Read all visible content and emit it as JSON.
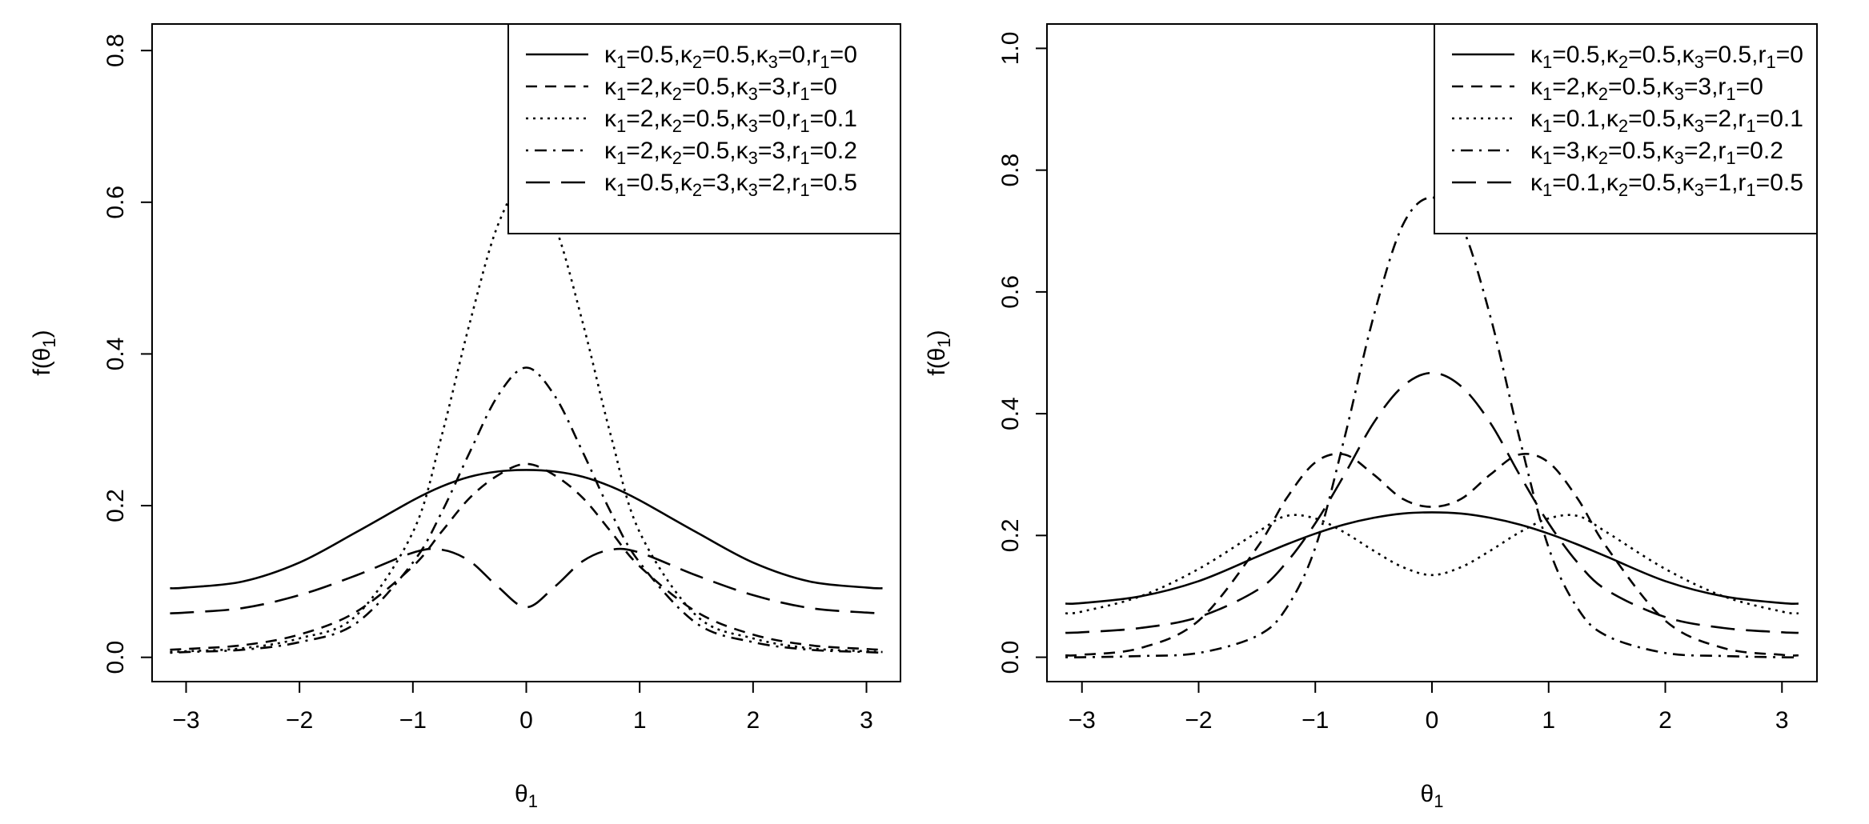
{
  "chart_data": [
    {
      "type": "line",
      "xlabel": "θ1",
      "ylabel": "f(θ1)",
      "xlim": [
        -3.3,
        3.3
      ],
      "ylim": [
        -0.032,
        0.835
      ],
      "x_ticks": [
        -3,
        -2,
        -1,
        0,
        1,
        2,
        3
      ],
      "x_tick_labels": [
        "−3",
        "−2",
        "−1",
        "0",
        "1",
        "2",
        "3"
      ],
      "y_ticks": [
        0.0,
        0.2,
        0.4,
        0.6,
        0.8
      ],
      "y_tick_labels": [
        "0.0",
        "0.2",
        "0.4",
        "0.6",
        "0.8"
      ],
      "grid": false,
      "legend_position": "top-right",
      "x": [
        -3.1416,
        -3.0,
        -2.5,
        -2.0,
        -1.5,
        -1.0,
        -0.75,
        -0.5,
        -0.25,
        0.0,
        0.25,
        0.5,
        0.75,
        1.0,
        1.5,
        2.0,
        2.5,
        3.0,
        3.1416
      ],
      "series": [
        {
          "name": "κ1=0.5,κ2=0.5,κ3=0,r1=0",
          "dash": "solid",
          "values": [
            0.091,
            0.092,
            0.1,
            0.125,
            0.165,
            0.207,
            0.225,
            0.238,
            0.245,
            0.247,
            0.245,
            0.238,
            0.225,
            0.207,
            0.165,
            0.125,
            0.1,
            0.092,
            0.091
          ]
        },
        {
          "name": "κ1=2,κ2=0.5,κ3=3,r1=0",
          "dash": "short-dash",
          "values": [
            0.01,
            0.011,
            0.016,
            0.03,
            0.06,
            0.12,
            0.165,
            0.21,
            0.24,
            0.255,
            0.24,
            0.21,
            0.165,
            0.12,
            0.06,
            0.03,
            0.016,
            0.011,
            0.01
          ]
        },
        {
          "name": "κ1=2,κ2=0.5,κ3=0,r1=0.1",
          "dash": "dotted",
          "values": [
            0.007,
            0.008,
            0.012,
            0.025,
            0.055,
            0.165,
            0.29,
            0.44,
            0.57,
            0.628,
            0.57,
            0.44,
            0.29,
            0.165,
            0.055,
            0.025,
            0.012,
            0.008,
            0.007
          ]
        },
        {
          "name": "κ1=2,κ2=0.5,κ3=3,r1=0.2",
          "dash": "dot-dash",
          "values": [
            0.006,
            0.007,
            0.01,
            0.02,
            0.045,
            0.125,
            0.19,
            0.27,
            0.345,
            0.382,
            0.345,
            0.27,
            0.19,
            0.125,
            0.045,
            0.02,
            0.01,
            0.007,
            0.006
          ]
        },
        {
          "name": "κ1=0.5,κ2=3,κ3=2,r1=0.5",
          "dash": "long-dash",
          "values": [
            0.058,
            0.059,
            0.065,
            0.082,
            0.108,
            0.138,
            0.142,
            0.127,
            0.093,
            0.066,
            0.093,
            0.127,
            0.142,
            0.138,
            0.108,
            0.082,
            0.065,
            0.059,
            0.058
          ]
        }
      ]
    },
    {
      "type": "line",
      "xlabel": "θ1",
      "ylabel": "f(θ1)",
      "xlim": [
        -3.3,
        3.3
      ],
      "ylim": [
        -0.04,
        1.04
      ],
      "x_ticks": [
        -3,
        -2,
        -1,
        0,
        1,
        2,
        3
      ],
      "x_tick_labels": [
        "−3",
        "−2",
        "−1",
        "0",
        "1",
        "2",
        "3"
      ],
      "y_ticks": [
        0.0,
        0.2,
        0.4,
        0.6,
        0.8,
        1.0
      ],
      "y_tick_labels": [
        "0.0",
        "0.2",
        "0.4",
        "0.6",
        "0.8",
        "1.0"
      ],
      "grid": false,
      "legend_position": "top-right",
      "x": [
        -3.1416,
        -3.0,
        -2.5,
        -2.0,
        -1.5,
        -1.25,
        -1.0,
        -0.75,
        -0.5,
        -0.25,
        0.0,
        0.25,
        0.5,
        0.75,
        1.0,
        1.25,
        1.5,
        2.0,
        2.5,
        3.0,
        3.1416
      ],
      "series": [
        {
          "name": "κ1=0.5,κ2=0.5,κ3=0.5,r1=0",
          "dash": "solid",
          "values": [
            0.088,
            0.089,
            0.1,
            0.125,
            0.165,
            0.185,
            0.203,
            0.218,
            0.229,
            0.236,
            0.238,
            0.236,
            0.229,
            0.218,
            0.203,
            0.185,
            0.165,
            0.125,
            0.1,
            0.089,
            0.088
          ]
        },
        {
          "name": "κ1=2,κ2=0.5,κ3=3,r1=0",
          "dash": "short-dash",
          "values": [
            0.003,
            0.004,
            0.015,
            0.06,
            0.18,
            0.26,
            0.32,
            0.333,
            0.3,
            0.26,
            0.247,
            0.26,
            0.3,
            0.333,
            0.32,
            0.26,
            0.18,
            0.06,
            0.015,
            0.004,
            0.003
          ]
        },
        {
          "name": "κ1=0.1,κ2=0.5,κ3=2,r1=0.1",
          "dash": "dotted",
          "values": [
            0.072,
            0.075,
            0.1,
            0.145,
            0.205,
            0.232,
            0.228,
            0.205,
            0.175,
            0.148,
            0.135,
            0.148,
            0.175,
            0.205,
            0.228,
            0.232,
            0.205,
            0.145,
            0.1,
            0.075,
            0.072
          ]
        },
        {
          "name": "κ1=3,κ2=0.5,κ3=2,r1=0.2",
          "dash": "dot-dash",
          "values": [
            0.0,
            0.0,
            0.002,
            0.007,
            0.035,
            0.08,
            0.18,
            0.36,
            0.56,
            0.71,
            0.755,
            0.71,
            0.56,
            0.36,
            0.18,
            0.08,
            0.035,
            0.007,
            0.002,
            0.0,
            0.0
          ]
        },
        {
          "name": "κ1=0.1,κ2=0.5,κ3=1,r1=0.5",
          "dash": "long-dash",
          "values": [
            0.04,
            0.041,
            0.048,
            0.066,
            0.11,
            0.155,
            0.22,
            0.3,
            0.385,
            0.445,
            0.467,
            0.445,
            0.385,
            0.3,
            0.22,
            0.155,
            0.11,
            0.066,
            0.048,
            0.041,
            0.04
          ]
        }
      ]
    }
  ]
}
